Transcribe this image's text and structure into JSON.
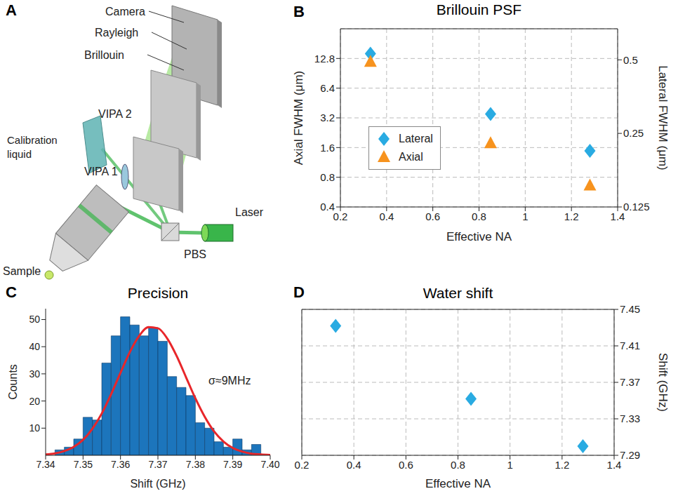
{
  "panel_labels": [
    "A",
    "B",
    "C",
    "D"
  ],
  "diagram": {
    "labels": {
      "camera": "Camera",
      "rayleigh": "Rayleigh",
      "brillouin": "Brillouin",
      "vipa2": "VIPA 2",
      "vipa1": "VIPA 1",
      "calibration": "Calibration liquid",
      "laser": "Laser",
      "pbs": "PBS",
      "sample": "Sample"
    }
  },
  "chart_data": [
    {
      "type": "scatter",
      "title": "Brillouin PSF",
      "x_label": "Effective NA",
      "y_label": "Axial FWHM (μm)",
      "y2_label": "Lateral FWHM (μm)",
      "xlim": [
        0.2,
        1.4
      ],
      "xticks": [
        0.2,
        0.4,
        0.6,
        0.8,
        1,
        1.2,
        1.4
      ],
      "ylim": [
        0.4,
        25.6
      ],
      "yticks": [
        0.4,
        0.8,
        1.6,
        3.2,
        6.4,
        12.8
      ],
      "y2lim": [
        0.125,
        0.67
      ],
      "y2ticks": [
        0.125,
        0.25,
        0.5
      ],
      "log": "y",
      "grid": true,
      "legend": "center left",
      "series": [
        {
          "name": "Lateral",
          "color": "#29abe2",
          "marker": "diamond",
          "axis": "y2",
          "x": [
            0.33,
            0.85,
            1.28
          ],
          "values": [
            0.53,
            0.3,
            0.212
          ]
        },
        {
          "name": "Axial",
          "color": "#f7931e",
          "marker": "triangle",
          "x": [
            0.33,
            0.85,
            1.28
          ],
          "values": [
            11.8,
            1.77,
            0.66
          ]
        }
      ]
    },
    {
      "type": "histogram",
      "title": "Precision",
      "x_label": "Shift (GHz)",
      "y_label": "Counts",
      "color": "#1c75bc",
      "bins": [
        7.3425,
        7.345,
        7.3475,
        7.35,
        7.3525,
        7.355,
        7.3575,
        7.36,
        7.3625,
        7.365,
        7.3675,
        7.37,
        7.3725,
        7.375,
        7.3775,
        7.38,
        7.3825,
        7.385,
        7.3875,
        7.39,
        7.3925,
        7.395,
        7.3975
      ],
      "counts": [
        2,
        3,
        6,
        14,
        13,
        34,
        44,
        51,
        48,
        44,
        47,
        42,
        29,
        25,
        22,
        12,
        10,
        5,
        3,
        6,
        2,
        4
      ],
      "fit": {
        "type": "line",
        "color": "#e8262a",
        "x": [
          7.34,
          7.3425,
          7.345,
          7.3475,
          7.35,
          7.3525,
          7.355,
          7.3575,
          7.36,
          7.3625,
          7.365,
          7.3675,
          7.37,
          7.3725,
          7.375,
          7.3775,
          7.38,
          7.3825,
          7.385,
          7.3875,
          7.39,
          7.3925,
          7.395,
          7.3975,
          7.4
        ],
        "values": [
          0.3,
          0.7,
          1.6,
          3.1,
          5.7,
          9.8,
          15.4,
          22.5,
          30.4,
          38.0,
          44.0,
          47.2,
          46.8,
          43.0,
          36.6,
          28.8,
          21.0,
          14.2,
          8.8,
          5.1,
          2.7,
          1.4,
          0.6,
          0.3,
          0.1
        ]
      },
      "annotation": "σ≈9MHz",
      "xlim": [
        7.34,
        7.4
      ],
      "xticks": [
        7.34,
        7.35,
        7.36,
        7.37,
        7.38,
        7.39,
        {
          "value": 7.4,
          "label": "7.40"
        }
      ],
      "ylim": [
        0,
        54
      ],
      "yticks": [
        10,
        20,
        30,
        40,
        50
      ],
      "grid": false
    },
    {
      "type": "scatter",
      "title": "Water shift",
      "x_label": "Effective NA",
      "y_label": "Shift (GHz)",
      "xlim": [
        0.2,
        1.4
      ],
      "xticks": [
        0.2,
        0.4,
        0.6,
        0.8,
        1,
        1.2,
        1.4
      ],
      "ylim": [
        7.29,
        7.45
      ],
      "yticks": [
        7.29,
        7.33,
        7.37,
        7.41,
        7.45
      ],
      "grid": true,
      "series": [
        {
          "color": "#29abe2",
          "marker": "diamond",
          "x": [
            0.33,
            0.85,
            1.28
          ],
          "values": [
            7.432,
            7.352,
            7.3
          ]
        }
      ]
    }
  ]
}
